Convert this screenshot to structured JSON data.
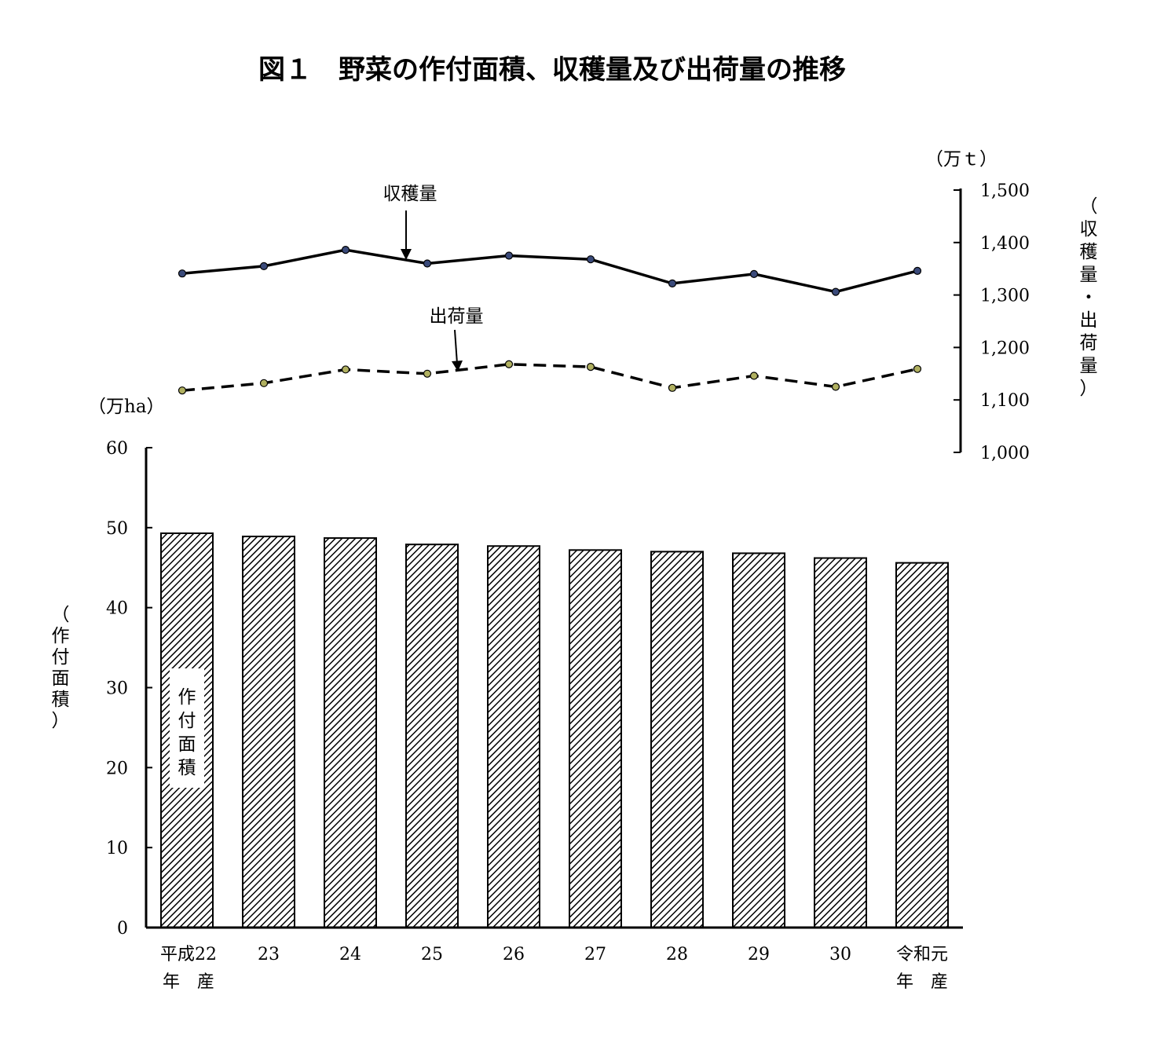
{
  "chart_data": {
    "type": "bar+line",
    "title": "図１　野菜の作付面積、収穫量及び出荷量の推移",
    "categories": [
      "平成22年産",
      "23",
      "24",
      "25",
      "26",
      "27",
      "28",
      "29",
      "30",
      "令和元年産"
    ],
    "category_lines": [
      [
        "平成22",
        "年　産"
      ],
      [
        "23"
      ],
      [
        "24"
      ],
      [
        "25"
      ],
      [
        "26"
      ],
      [
        "27"
      ],
      [
        "28"
      ],
      [
        "29"
      ],
      [
        "30"
      ],
      [
        "令和元",
        "年　産"
      ]
    ],
    "bar_series": {
      "name": "作付面積",
      "name_chars": [
        "作",
        "付",
        "面",
        "積"
      ],
      "values": [
        49.3,
        48.9,
        48.7,
        47.9,
        47.7,
        47.2,
        47.0,
        46.8,
        46.2,
        45.6
      ]
    },
    "line_series": [
      {
        "name": "収穫量",
        "values": [
          1341,
          1355,
          1386,
          1360,
          1375,
          1368,
          1322,
          1340,
          1306,
          1346
        ],
        "style": "solid"
      },
      {
        "name": "出荷量",
        "values": [
          1118,
          1132,
          1158,
          1150,
          1168,
          1163,
          1123,
          1146,
          1125,
          1159
        ],
        "style": "dashed"
      }
    ],
    "left_axis": {
      "unit": "（万ha）",
      "label_chars": [
        "（",
        "作",
        "付",
        "面",
        "積",
        "）"
      ],
      "ylim": [
        0,
        60
      ],
      "ticks": [
        "0",
        "10",
        "20",
        "30",
        "40",
        "50",
        "60"
      ]
    },
    "right_axis": {
      "unit": "（万ｔ）",
      "label_chars": [
        "（",
        "収",
        "穫",
        "量",
        "・",
        "出",
        "荷",
        "量",
        "）"
      ],
      "ylim": [
        1000,
        1500
      ],
      "ticks": [
        "1,000",
        "1,100",
        "1,200",
        "1,300",
        "1,400",
        "1,500"
      ]
    },
    "colors": {
      "harvest_marker": "#3a4a7a",
      "shipment_marker": "#b0b060",
      "bar_hatch": "#000000"
    }
  }
}
